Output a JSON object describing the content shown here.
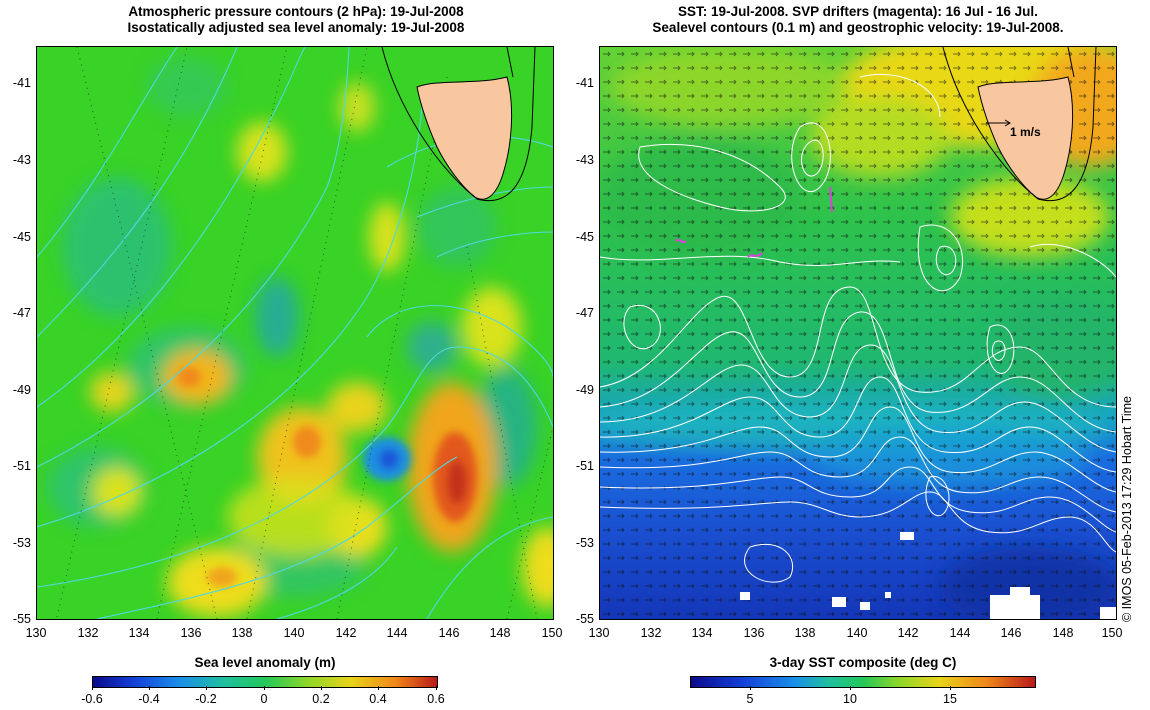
{
  "left_panel": {
    "title_line1": "Atmospheric pressure contours (2 hPa): 19-Jul-2008",
    "title_line2": "Isostatically adjusted sea level anomaly: 19-Jul-2008",
    "colorbar_label": "Sea level anomaly (m)",
    "colorbar_ticks": [
      "-0.6",
      "-0.4",
      "-0.2",
      "0",
      "0.2",
      "0.4",
      "0.6"
    ]
  },
  "right_panel": {
    "title_line1": "SST: 19-Jul-2008. SVP drifters (magenta): 16 Jul - 16 Jul.",
    "title_line2": "Sealevel contours (0.1 m) and geostrophic velocity: 19-Jul-2008.",
    "colorbar_label": "3-day SST composite (deg C)",
    "colorbar_ticks": [
      "5",
      "10",
      "15"
    ],
    "speed_scale_label": "1 m/s"
  },
  "axes": {
    "y_ticks": [
      "-41",
      "-43",
      "-45",
      "-47",
      "-49",
      "-51",
      "-53",
      "-55"
    ],
    "x_ticks": [
      "130",
      "132",
      "134",
      "136",
      "138",
      "140",
      "142",
      "144",
      "146",
      "148",
      "150"
    ],
    "lon_range": [
      130,
      150
    ],
    "lat_range": [
      -55,
      -40
    ]
  },
  "copyright": "© IMOS 05-Feb-2013 17:29 Hobart Time",
  "colors": {
    "land": "#f9c79f",
    "ssh_background": "#39d226",
    "pressure_contour": "#4fd8e0",
    "sst_warm": "#f2c40a",
    "sst_mid": "#1fbf6a",
    "sst_cold": "#1a5ed8",
    "drifter": "#e040e0"
  }
}
